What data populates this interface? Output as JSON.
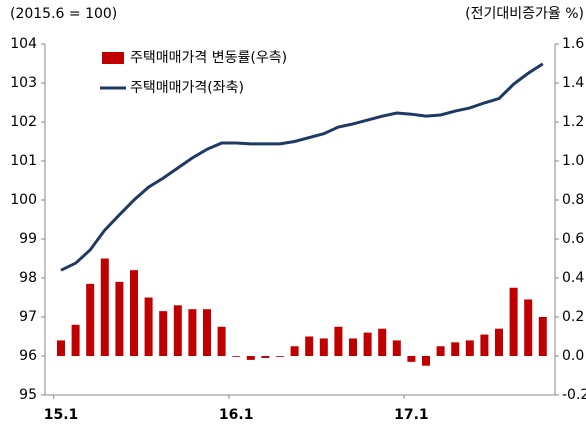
{
  "chart_data": {
    "type": "bar-line",
    "ylabel": "(2015.6 = 100)",
    "y2label": "(전기대비증가율 %)",
    "categories": [
      "15.1",
      null,
      null,
      null,
      null,
      null,
      null,
      null,
      null,
      null,
      null,
      null,
      "16.1",
      null,
      null,
      null,
      null,
      null,
      null,
      null,
      null,
      null,
      null,
      null,
      "17.1",
      null,
      null,
      null,
      null,
      null,
      null,
      null,
      null,
      null
    ],
    "ylim": [
      95,
      104
    ],
    "yticks": [
      95,
      96,
      97,
      98,
      99,
      100,
      101,
      102,
      103,
      104
    ],
    "y2lim": [
      -0.2,
      1.6
    ],
    "y2ticks": [
      -0.2,
      {
        "value": 0,
        "label": "0.0"
      },
      0.2,
      0.4,
      0.6,
      0.8,
      {
        "value": 1,
        "label": "1.0"
      },
      1.2,
      1.4,
      1.6
    ],
    "series": [
      {
        "name": "주택매매가격 변동률(우측)",
        "type": "bar",
        "axis": "y2",
        "color": "#c00000",
        "values": [
          0.08,
          0.16,
          0.37,
          0.5,
          0.38,
          0.44,
          0.3,
          0.23,
          0.26,
          0.24,
          0.24,
          0.15,
          0.0,
          -0.02,
          -0.01,
          0.0,
          0.05,
          0.1,
          0.09,
          0.15,
          0.09,
          0.12,
          0.14,
          0.08,
          -0.03,
          -0.05,
          0.05,
          0.07,
          0.08,
          0.11,
          0.14,
          0.35,
          0.29,
          0.2
        ]
      },
      {
        "name": "주택매매가격(좌축)",
        "type": "line",
        "axis": "y",
        "color": "#1f3864",
        "values": [
          98.2,
          98.38,
          98.72,
          99.23,
          99.62,
          100.0,
          100.33,
          100.56,
          100.82,
          101.08,
          101.3,
          101.46,
          101.46,
          101.44,
          101.44,
          101.44,
          101.5,
          101.6,
          101.7,
          101.87,
          101.95,
          102.05,
          102.15,
          102.23,
          102.2,
          102.15,
          102.18,
          102.28,
          102.36,
          102.49,
          102.6,
          102.97,
          103.25,
          103.49
        ]
      }
    ]
  }
}
